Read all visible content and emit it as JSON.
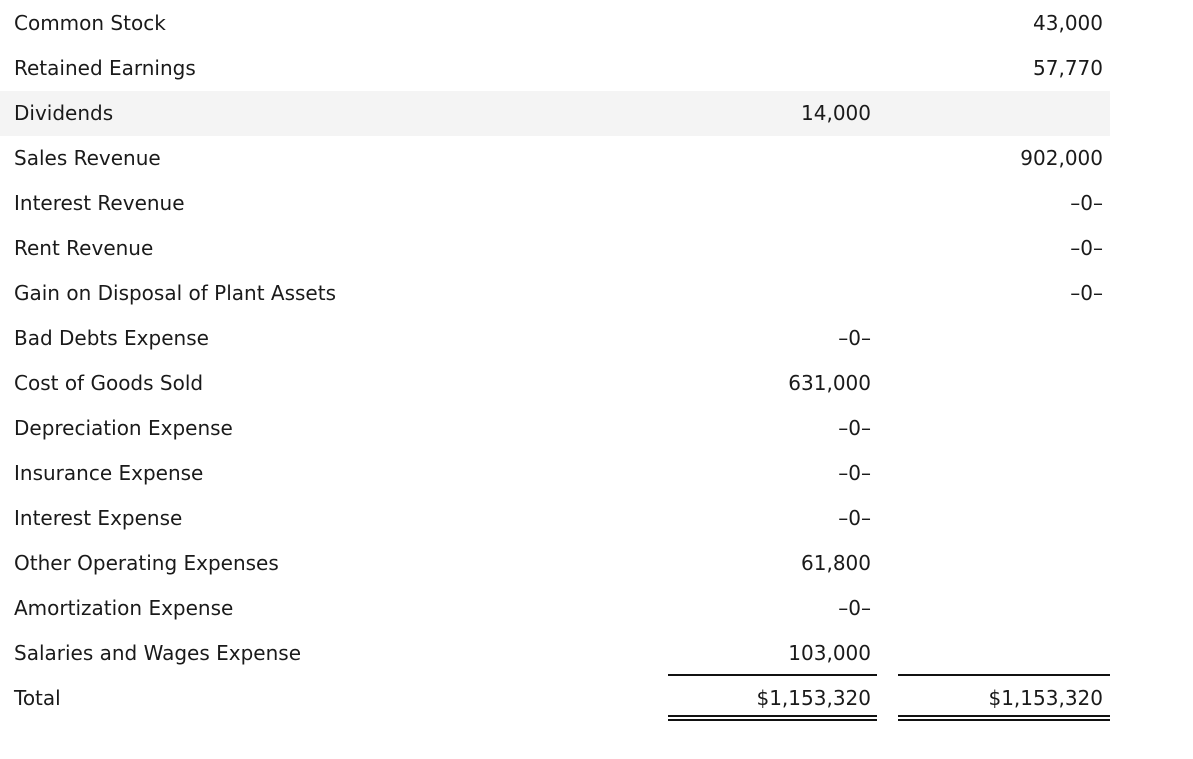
{
  "table": {
    "highlight_color": "#f4f4f4",
    "text_color": "#1a1a1a",
    "rows": [
      {
        "account": "Common Stock",
        "debit": "",
        "credit": "43,000",
        "highlighted": false
      },
      {
        "account": "Retained Earnings",
        "debit": "",
        "credit": "57,770",
        "highlighted": false
      },
      {
        "account": "Dividends",
        "debit": "14,000",
        "credit": "",
        "highlighted": true
      },
      {
        "account": "Sales Revenue",
        "debit": "",
        "credit": "902,000",
        "highlighted": false
      },
      {
        "account": "Interest Revenue",
        "debit": "",
        "credit": "–0–",
        "highlighted": false
      },
      {
        "account": "Rent Revenue",
        "debit": "",
        "credit": "–0–",
        "highlighted": false
      },
      {
        "account": "Gain on Disposal of Plant Assets",
        "debit": "",
        "credit": "–0–",
        "highlighted": false
      },
      {
        "account": "Bad Debts Expense",
        "debit": "–0–",
        "credit": "",
        "highlighted": false
      },
      {
        "account": "Cost of Goods Sold",
        "debit": "631,000",
        "credit": "",
        "highlighted": false
      },
      {
        "account": "Depreciation Expense",
        "debit": "–0–",
        "credit": "",
        "highlighted": false
      },
      {
        "account": "Insurance Expense",
        "debit": "–0–",
        "credit": "",
        "highlighted": false
      },
      {
        "account": "Interest Expense",
        "debit": "–0–",
        "credit": "",
        "highlighted": false
      },
      {
        "account": "Other Operating Expenses",
        "debit": "61,800",
        "credit": "",
        "highlighted": false
      },
      {
        "account": "Amortization Expense",
        "debit": "–0–",
        "credit": "",
        "highlighted": false
      },
      {
        "account": "Salaries and Wages Expense",
        "debit": "103,000",
        "credit": "",
        "highlighted": false,
        "rule_below": true
      }
    ],
    "total_row": {
      "account": "Total",
      "debit": "$1,153,320",
      "credit": "$1,153,320"
    }
  }
}
